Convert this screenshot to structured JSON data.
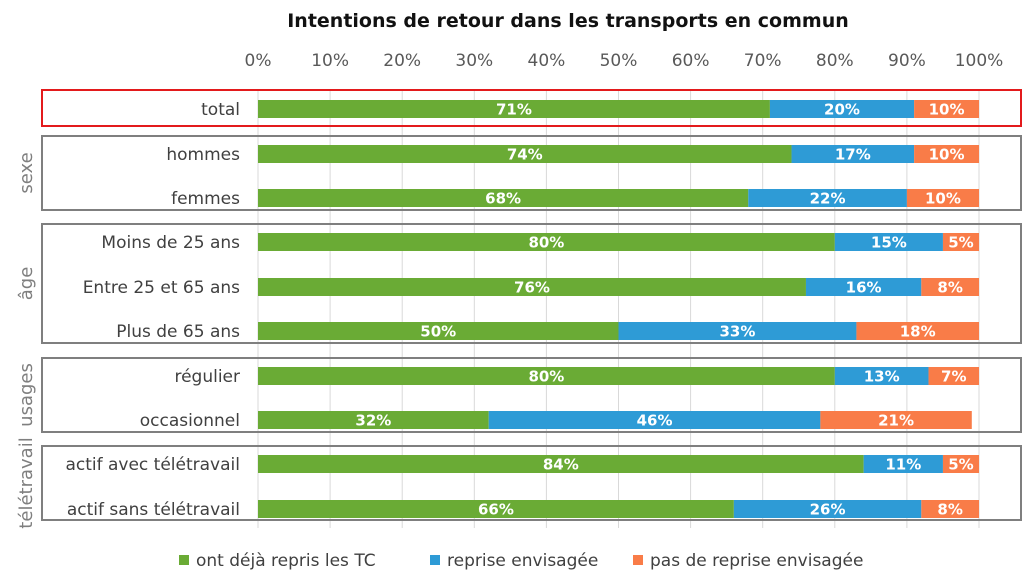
{
  "chart_data": {
    "type": "bar",
    "orientation": "horizontal",
    "stacked": true,
    "title": "Intentions de retour dans les transports en commun",
    "x_ticks": [
      "0%",
      "10%",
      "20%",
      "30%",
      "40%",
      "50%",
      "60%",
      "70%",
      "80%",
      "90%",
      "100%"
    ],
    "xlim": [
      0,
      100
    ],
    "grid": true,
    "legend_position": "bottom",
    "series": [
      {
        "name": "ont déjà repris les TC",
        "color": "#6aab35"
      },
      {
        "name": "reprise envisagée",
        "color": "#2e9bd6"
      },
      {
        "name": "pas de reprise envisagée",
        "color": "#f97c48"
      }
    ],
    "groups": [
      {
        "name": "",
        "highlight": true,
        "rows": [
          {
            "label": "total",
            "values": [
              71,
              20,
              10
            ],
            "labels": [
              "71%",
              "20%",
              "10%"
            ]
          }
        ]
      },
      {
        "name": "sexe",
        "highlight": false,
        "rows": [
          {
            "label": "hommes",
            "values": [
              74,
              17,
              10
            ],
            "labels": [
              "74%",
              "17%",
              "10%"
            ]
          },
          {
            "label": "femmes",
            "values": [
              68,
              22,
              10
            ],
            "labels": [
              "68%",
              "22%",
              "10%"
            ]
          }
        ]
      },
      {
        "name": "âge",
        "highlight": false,
        "rows": [
          {
            "label": "Moins de 25 ans",
            "values": [
              80,
              15,
              5
            ],
            "labels": [
              "80%",
              "15%",
              "5%"
            ]
          },
          {
            "label": "Entre 25 et 65 ans",
            "values": [
              76,
              16,
              8
            ],
            "labels": [
              "76%",
              "16%",
              "8%"
            ]
          },
          {
            "label": "Plus de 65 ans",
            "values": [
              50,
              33,
              18
            ],
            "labels": [
              "50%",
              "33%",
              "18%"
            ]
          }
        ]
      },
      {
        "name": "usages",
        "highlight": false,
        "rows": [
          {
            "label": "régulier",
            "values": [
              80,
              13,
              7
            ],
            "labels": [
              "80%",
              "13%",
              "7%"
            ]
          },
          {
            "label": "occasionnel",
            "values": [
              32,
              46,
              21
            ],
            "labels": [
              "32%",
              "46%",
              "21%"
            ]
          }
        ]
      },
      {
        "name": "télétravail",
        "highlight": false,
        "rows": [
          {
            "label": "actif avec télétravail",
            "values": [
              84,
              11,
              5
            ],
            "labels": [
              "84%",
              "11%",
              "5%"
            ]
          },
          {
            "label": "actif sans télétravail",
            "values": [
              66,
              26,
              8
            ],
            "labels": [
              "66%",
              "26%",
              "8%"
            ]
          }
        ]
      }
    ]
  }
}
